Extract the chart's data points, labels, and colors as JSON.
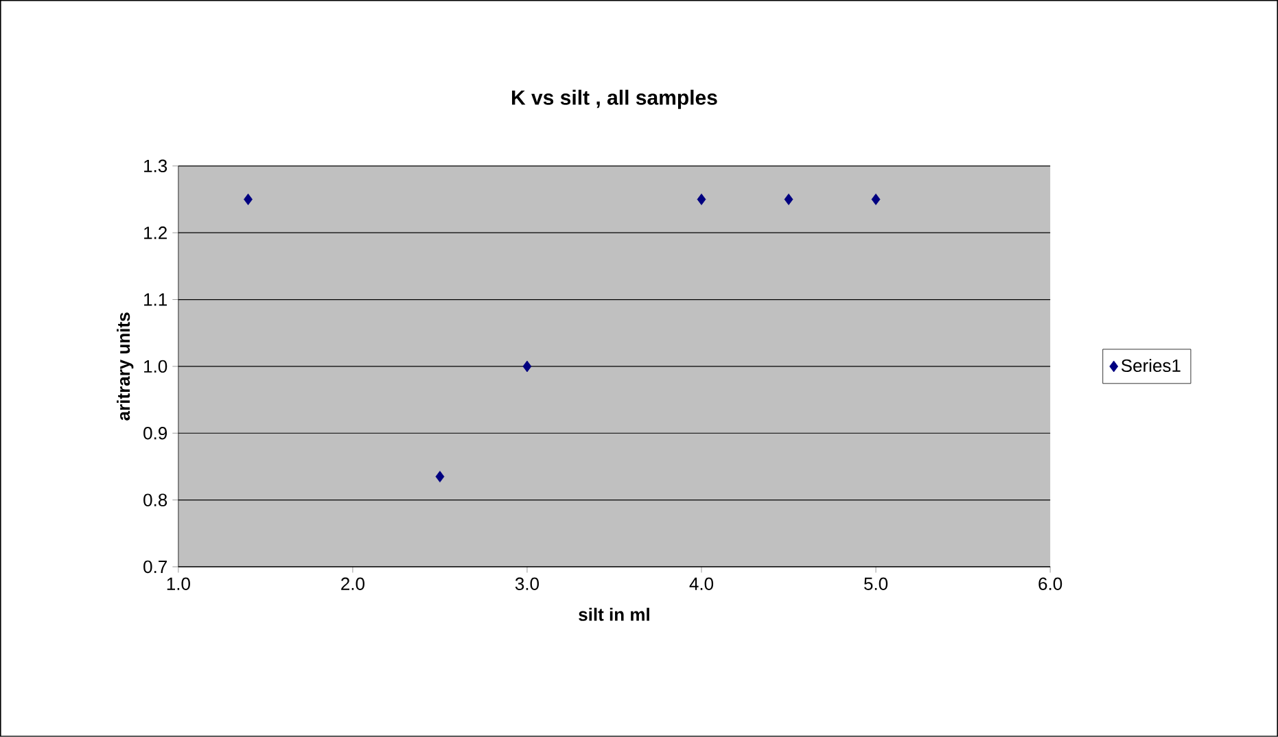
{
  "chart_data": {
    "type": "scatter",
    "title": "K vs silt , all samples",
    "xlabel": "silt in ml",
    "ylabel": "aritrary units",
    "x": [
      1.4,
      2.5,
      3.0,
      4.0,
      4.5,
      5.0
    ],
    "series": [
      {
        "name": "Series1",
        "color": "#000080",
        "values": [
          1.25,
          0.835,
          1.0,
          1.25,
          1.25,
          1.25
        ]
      }
    ],
    "xlim": [
      1,
      6
    ],
    "xticks": [
      {
        "value": 1,
        "label": "1.0"
      },
      {
        "value": 2,
        "label": "2.0"
      },
      {
        "value": 3,
        "label": "3.0"
      },
      {
        "value": 4,
        "label": "4.0"
      },
      {
        "value": 5,
        "label": "5.0"
      },
      {
        "value": 6,
        "label": "6.0"
      }
    ],
    "ylim": [
      0.7,
      1.3
    ],
    "yticks": [
      0.7,
      0.8,
      0.9,
      {
        "value": 1,
        "label": "1.0"
      },
      1.1,
      1.2,
      1.3
    ],
    "grid": "y",
    "legend": "right",
    "marker": "diamond"
  }
}
